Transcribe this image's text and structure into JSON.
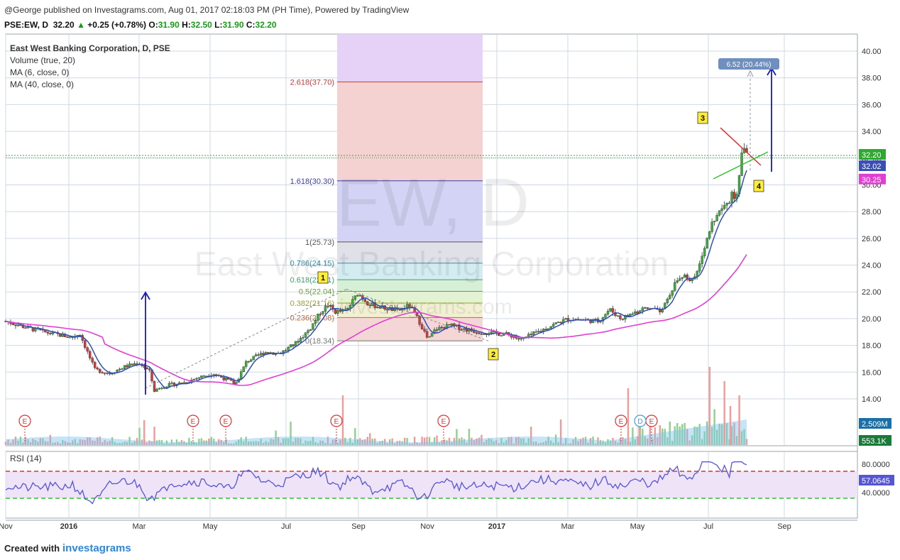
{
  "header": {
    "published": "@George published on Investagrams.com, Aug 01, 2017 02:18:03 PM (PH Time), Powered by TradingView",
    "symbol": "PSE:EW, D",
    "last": "32.20",
    "change": "+0.25 (+0.78%)",
    "open_label": "O:",
    "open": "31.90",
    "high_label": "H:",
    "high": "32.50",
    "low_label": "L:",
    "low": "31.90",
    "close_label": "C:",
    "close": "32.20"
  },
  "legend": [
    "East West Banking Corporation, D, PSE",
    "Volume (true, 20)",
    "MA (6, close, 0)",
    "MA (40, close, 0)"
  ],
  "watermark": {
    "symbol": "EW, D",
    "name": "East West Banking Corporation",
    "site": "investagrams.com"
  },
  "footer": {
    "created": "Created with",
    "brand": "investagrams"
  },
  "colors": {
    "up": "#3dae3d",
    "down": "#d23b3b",
    "ma_fast": "#2f4fb5",
    "ma_slow": "#e040d0",
    "rsi": "#5555d8",
    "grid": "#cfd8e3"
  },
  "chart_data": {
    "type": "candlestick",
    "y_axis": {
      "ticks": [
        "40.00",
        "38.00",
        "36.00",
        "34.00",
        "32.00",
        "30.00",
        "28.00",
        "26.00",
        "24.00",
        "22.00",
        "20.00",
        "18.00",
        "16.00",
        "14.00"
      ],
      "ylim": [
        13,
        41
      ]
    },
    "x_axis": {
      "ticks": [
        "Nov",
        "2016",
        "Mar",
        "May",
        "Jul",
        "Sep",
        "Nov",
        "2017",
        "Mar",
        "May",
        "Jul",
        "Sep"
      ]
    },
    "price_badges": {
      "last": "32.20",
      "ma_fast": "32.02",
      "ma_slow": "30.25"
    },
    "fibonacci": {
      "levels": [
        {
          "label": "2.618(37.70)",
          "value": 37.7
        },
        {
          "label": "1.618(30.30)",
          "value": 30.3
        },
        {
          "label": "1(25.73)",
          "value": 25.73
        },
        {
          "label": "0.786(24.15)",
          "value": 24.15
        },
        {
          "label": "0.618(22.91)",
          "value": 22.91
        },
        {
          "label": "0.5(22.04)",
          "value": 22.04
        },
        {
          "label": "0.382(21.16)",
          "value": 21.16
        },
        {
          "label": "0.236(20.08)",
          "value": 20.08
        },
        {
          "label": "0(18.34)",
          "value": 18.34
        }
      ]
    },
    "annotations": {
      "wave_labels": [
        "1",
        "2",
        "3",
        "4"
      ],
      "target_label": "6.52 (20.44%)",
      "earnings_marker": "E",
      "dividend_marker": "D"
    },
    "volume": {
      "badges": [
        "2.509M",
        "553.1K"
      ]
    },
    "rsi": {
      "label": "RSI (14)",
      "ticks": [
        "80.0000",
        "40.0000"
      ],
      "value": "57.0645",
      "upper": 70,
      "lower": 30
    },
    "price_path": [
      [
        0,
        19.8
      ],
      [
        0.03,
        19.3
      ],
      [
        0.06,
        18.9
      ],
      [
        0.09,
        18.6
      ],
      [
        0.1,
        18.9
      ],
      [
        0.12,
        16.2
      ],
      [
        0.14,
        15.9
      ],
      [
        0.16,
        16.4
      ],
      [
        0.18,
        16.7
      ],
      [
        0.195,
        16.0
      ],
      [
        0.2,
        14.6
      ],
      [
        0.215,
        15.0
      ],
      [
        0.24,
        15.2
      ],
      [
        0.26,
        15.6
      ],
      [
        0.28,
        15.9
      ],
      [
        0.3,
        15.4
      ],
      [
        0.31,
        15.1
      ],
      [
        0.325,
        16.8
      ],
      [
        0.35,
        17.5
      ],
      [
        0.37,
        17.4
      ],
      [
        0.39,
        18.1
      ],
      [
        0.41,
        19.2
      ],
      [
        0.425,
        20.5
      ],
      [
        0.435,
        21.0
      ],
      [
        0.445,
        20.5
      ],
      [
        0.46,
        20.6
      ],
      [
        0.475,
        21.9
      ],
      [
        0.49,
        21.1
      ],
      [
        0.51,
        20.8
      ],
      [
        0.53,
        20.6
      ],
      [
        0.545,
        21.0
      ],
      [
        0.56,
        19.6
      ],
      [
        0.57,
        18.4
      ],
      [
        0.58,
        19.2
      ],
      [
        0.6,
        19.5
      ],
      [
        0.62,
        19.2
      ],
      [
        0.64,
        19.0
      ],
      [
        0.66,
        18.9
      ],
      [
        0.68,
        18.8
      ],
      [
        0.695,
        18.4
      ],
      [
        0.71,
        18.8
      ],
      [
        0.73,
        19.3
      ],
      [
        0.745,
        19.7
      ],
      [
        0.76,
        20.0
      ],
      [
        0.78,
        19.9
      ],
      [
        0.8,
        19.8
      ],
      [
        0.815,
        20.7
      ],
      [
        0.83,
        20.0
      ],
      [
        0.85,
        20.5
      ],
      [
        0.87,
        20.8
      ],
      [
        0.885,
        20.6
      ],
      [
        0.895,
        21.8
      ],
      [
        0.905,
        22.8
      ],
      [
        0.915,
        23.2
      ],
      [
        0.925,
        22.6
      ],
      [
        0.935,
        24.0
      ],
      [
        0.945,
        25.8
      ],
      [
        0.955,
        27.4
      ],
      [
        0.965,
        28.0
      ],
      [
        0.975,
        28.6
      ],
      [
        0.98,
        29.4
      ],
      [
        0.985,
        28.4
      ],
      [
        0.99,
        30.6
      ],
      [
        0.995,
        33.2
      ],
      [
        1.0,
        32.2
      ]
    ]
  }
}
